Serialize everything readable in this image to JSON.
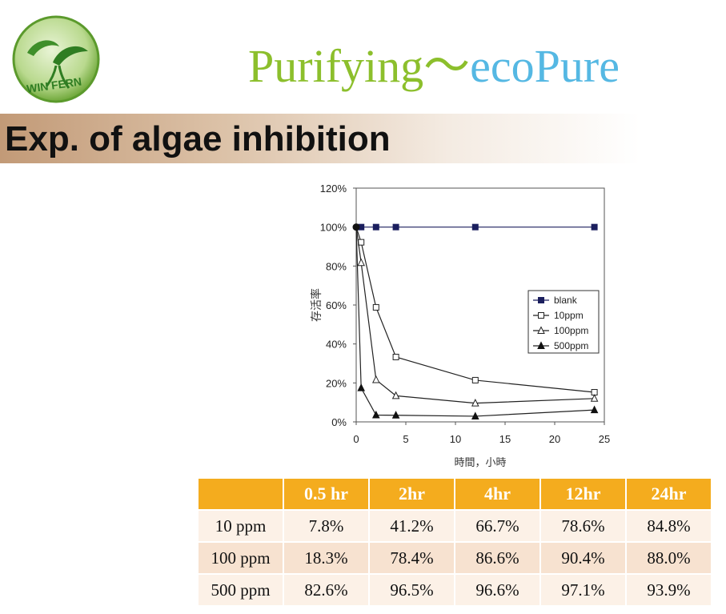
{
  "brand": {
    "logo_text": "WIN FERN",
    "part1": "Purifying",
    "part2": "～",
    "part3": "ecoPure"
  },
  "title": "Exp. of algae inhibition",
  "chart_data": {
    "type": "line",
    "ylabel": "存活率",
    "xlabel": "時間，小時",
    "xlim": [
      0,
      25
    ],
    "ylim": [
      0,
      120
    ],
    "x_ticks": [
      "0",
      "5",
      "10",
      "15",
      "20",
      "25"
    ],
    "y_ticks": [
      "0%",
      "20%",
      "40%",
      "60%",
      "80%",
      "100%",
      "120%"
    ],
    "legend_position": "center-right",
    "series": [
      {
        "name": "blank",
        "marker": "filled-square",
        "x": [
          0,
          0.5,
          2,
          4,
          12,
          24
        ],
        "y": [
          100,
          100,
          100,
          100,
          100,
          100
        ]
      },
      {
        "name": "10ppm",
        "marker": "open-square",
        "x": [
          0,
          0.5,
          2,
          4,
          12,
          24
        ],
        "y": [
          100,
          92.2,
          58.8,
          33.3,
          21.4,
          15.2
        ]
      },
      {
        "name": "100ppm",
        "marker": "open-triangle",
        "x": [
          0,
          0.5,
          2,
          4,
          12,
          24
        ],
        "y": [
          100,
          81.7,
          21.6,
          13.4,
          9.6,
          12.0
        ]
      },
      {
        "name": "500ppm",
        "marker": "filled-triangle",
        "x": [
          0,
          0.5,
          2,
          4,
          12,
          24
        ],
        "y": [
          100,
          17.4,
          3.5,
          3.4,
          2.9,
          6.1
        ]
      }
    ]
  },
  "table": {
    "headers": [
      "",
      "0.5 hr",
      "2hr",
      "4hr",
      "12hr",
      "24hr"
    ],
    "rows": [
      [
        "10 ppm",
        "7.8%",
        "41.2%",
        "66.7%",
        "78.6%",
        "84.8%"
      ],
      [
        "100 ppm",
        "18.3%",
        "78.4%",
        "86.6%",
        "90.4%",
        "88.0%"
      ],
      [
        "500 ppm",
        "82.6%",
        "96.5%",
        "96.6%",
        "97.1%",
        "93.9%"
      ]
    ]
  }
}
